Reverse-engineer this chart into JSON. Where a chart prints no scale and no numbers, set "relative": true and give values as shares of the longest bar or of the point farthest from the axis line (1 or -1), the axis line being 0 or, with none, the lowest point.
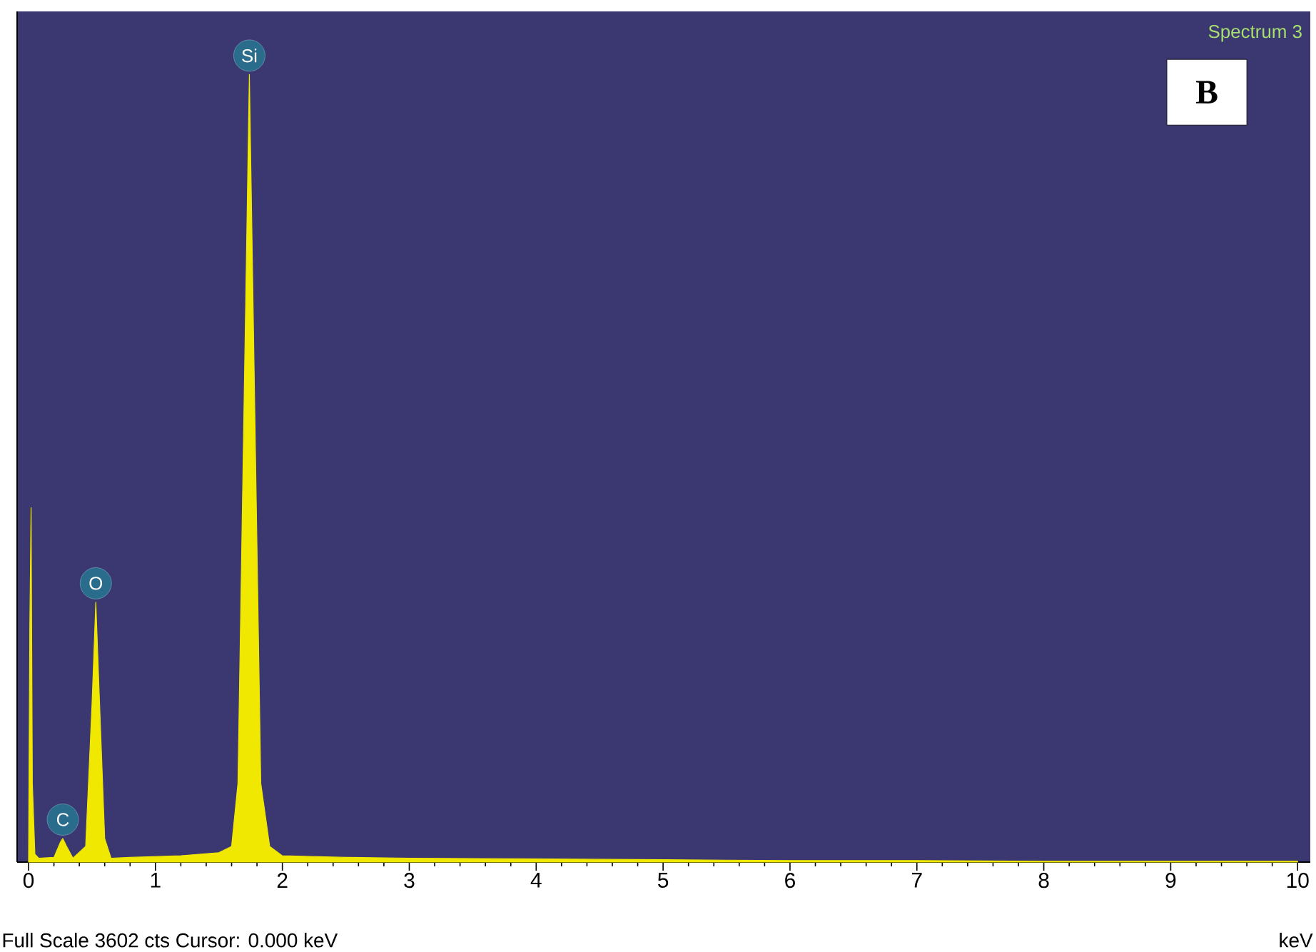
{
  "chart_data": {
    "type": "area",
    "relative": true,
    "xlabel": "keV",
    "xlim": [
      -0.09,
      10.1
    ],
    "xticks": [
      0,
      1,
      2,
      3,
      4,
      5,
      6,
      7,
      8,
      9,
      10
    ],
    "series": [
      {
        "color": "#f0e800",
        "x": [
          0,
          0.01,
          0.02,
          0.03,
          0.05,
          0.08,
          0.2,
          0.25,
          0.27,
          0.3,
          0.35,
          0.45,
          0.5,
          0.53,
          0.56,
          0.6,
          0.65,
          0.8,
          1.2,
          1.5,
          1.6,
          1.65,
          1.7,
          1.74,
          1.78,
          1.83,
          1.9,
          2.0,
          2.5,
          3,
          4,
          5,
          6,
          7,
          8,
          10
        ],
        "values": [
          0,
          0.3,
          0.45,
          0.1,
          0.01,
          0.005,
          0.006,
          0.025,
          0.03,
          0.02,
          0.005,
          0.02,
          0.2,
          0.33,
          0.2,
          0.03,
          0.005,
          0.006,
          0.008,
          0.012,
          0.02,
          0.1,
          0.6,
          1,
          0.6,
          0.1,
          0.02,
          0.008,
          0.006,
          0.005,
          0.004,
          0.003,
          0.002,
          0.002,
          0.001,
          0.001
        ]
      }
    ],
    "annotations": [
      {
        "text": "Si",
        "x": 1.74,
        "y": 1
      },
      {
        "text": "O",
        "x": 0.53,
        "y": 0.33
      },
      {
        "text": "C",
        "x": 0.27,
        "y": 0.03
      },
      "Spectrum 3",
      "B",
      "Full Scale  3602 cts  Cursor: 0.000 keV"
    ]
  }
}
